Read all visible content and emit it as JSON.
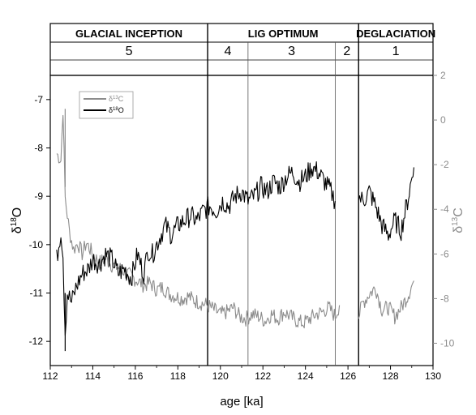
{
  "chart_data": {
    "type": "line",
    "xlabel": "age [ka]",
    "ylabel_left_main": "δ",
    "ylabel_left_sup": "18",
    "ylabel_left_tail": "O",
    "ylabel_right_main": "δ",
    "ylabel_right_sup": "13",
    "ylabel_right_tail": "C",
    "xlim": [
      112,
      130
    ],
    "ylim_left": [
      -12.5,
      -6.5
    ],
    "ylim_right": [
      -11,
      2
    ],
    "x_ticks": [
      "112",
      "114",
      "116",
      "118",
      "120",
      "122",
      "124",
      "126",
      "128",
      "130"
    ],
    "y_left_ticks": [
      "-7",
      "-8",
      "-9",
      "-10",
      "-11",
      "-12"
    ],
    "y_right_ticks": [
      "2",
      "0",
      "-2",
      "-4",
      "-6",
      "-8",
      "-10"
    ],
    "legend": {
      "placement": "top-left",
      "items": [
        {
          "sym": "δ",
          "sup": "13",
          "tail": "C",
          "color": "#8c8c8c"
        },
        {
          "sym": "δ",
          "sup": "18",
          "tail": "O",
          "color": "#000000"
        }
      ]
    },
    "periods": [
      {
        "label": "GLACIAL INCEPTION",
        "start": 112,
        "end": 119.4
      },
      {
        "label": "LIG OPTIMUM",
        "start": 119.4,
        "end": 126.5
      },
      {
        "label": "DEGLACIATION",
        "start": 126.5,
        "end": 130
      }
    ],
    "stages": [
      {
        "label": "5",
        "start": 112,
        "end": 119.4
      },
      {
        "label": "4",
        "start": 119.4,
        "end": 121.3
      },
      {
        "label": "3",
        "start": 121.3,
        "end": 125.4
      },
      {
        "label": "2",
        "start": 125.4,
        "end": 126.5
      },
      {
        "label": "1",
        "start": 126.5,
        "end": 130
      }
    ],
    "boundaries": [
      {
        "x": 119.4,
        "style": "major"
      },
      {
        "x": 121.3,
        "style": "minor"
      },
      {
        "x": 125.4,
        "style": "minor"
      },
      {
        "x": 126.5,
        "style": "major"
      }
    ],
    "series": [
      {
        "axis": "right",
        "color": "#8c8c8c",
        "segments": [
          {
            "x": [
              112.3,
              112.5,
              112.6,
              112.7,
              112.9,
              113.1,
              113.3,
              113.5,
              113.7,
              114.0,
              114.3,
              114.6,
              114.9,
              115.2,
              115.5,
              115.8,
              116.1,
              116.4,
              116.7,
              117.0,
              117.3,
              117.6,
              117.9,
              118.2,
              118.5,
              118.8,
              119.1,
              119.4,
              119.7,
              120.0,
              120.3,
              120.6,
              120.9,
              121.2,
              121.5,
              121.8,
              122.1,
              122.4,
              122.7,
              123.0,
              123.3,
              123.6,
              123.9,
              124.2,
              124.5,
              124.8,
              125.1,
              125.4,
              125.6
            ],
            "y": [
              -1.5,
              -1.8,
              0.5,
              -3.5,
              -5.0,
              -5.8,
              -5.5,
              -6.0,
              -5.5,
              -6.0,
              -6.4,
              -6.2,
              -6.5,
              -6.6,
              -6.8,
              -7.0,
              -7.2,
              -7.4,
              -7.3,
              -7.6,
              -7.5,
              -7.8,
              -7.9,
              -8.0,
              -7.9,
              -8.1,
              -8.2,
              -8.3,
              -8.5,
              -8.7,
              -8.6,
              -8.4,
              -8.8,
              -8.9,
              -8.7,
              -8.8,
              -9.0,
              -8.7,
              -8.9,
              -8.6,
              -8.8,
              -9.0,
              -9.1,
              -8.9,
              -8.7,
              -8.6,
              -8.4,
              -8.8,
              -8.3
            ]
          },
          {
            "x": [
              126.5,
              126.7,
              127.0,
              127.3,
              127.6,
              127.9,
              128.2,
              128.5,
              128.8,
              129.1
            ],
            "y": [
              -8.8,
              -8.2,
              -7.8,
              -7.5,
              -8.5,
              -8.4,
              -8.8,
              -8.4,
              -7.9,
              -7.2
            ]
          }
        ]
      },
      {
        "axis": "left",
        "color": "#000000",
        "segments": [
          {
            "x": [
              112.3,
              112.5,
              112.6,
              112.7,
              112.8,
              113.0,
              113.2,
              113.5,
              113.8,
              114.0,
              114.3,
              114.6,
              114.9,
              115.2,
              115.5,
              115.8,
              116.1,
              116.4,
              116.6,
              116.8,
              117.1,
              117.4,
              117.7,
              118.0,
              118.3,
              118.6,
              118.9,
              119.2,
              119.5,
              119.8,
              120.1,
              120.4,
              120.7,
              121.0,
              121.3,
              121.6,
              121.9,
              122.2,
              122.5,
              122.8,
              123.1,
              123.4,
              123.7,
              124.0,
              124.3,
              124.6,
              124.9,
              125.2,
              125.4
            ],
            "y": [
              -10.3,
              -9.7,
              -10.2,
              -11.8,
              -11.0,
              -11.2,
              -10.9,
              -10.6,
              -10.5,
              -10.3,
              -10.4,
              -10.2,
              -10.3,
              -10.6,
              -10.5,
              -10.7,
              -10.2,
              -10.6,
              -10.1,
              -10.2,
              -9.9,
              -9.6,
              -9.8,
              -9.6,
              -9.5,
              -9.4,
              -9.5,
              -9.3,
              -9.2,
              -9.3,
              -9.1,
              -9.2,
              -9.0,
              -8.9,
              -9.1,
              -9.0,
              -8.8,
              -8.9,
              -8.7,
              -8.8,
              -8.6,
              -8.5,
              -8.7,
              -8.6,
              -8.4,
              -8.5,
              -8.7,
              -8.9,
              -9.1
            ]
          },
          {
            "x": [
              126.5,
              126.7,
              127.0,
              127.3,
              127.6,
              127.9,
              128.2,
              128.5,
              128.8,
              129.1
            ],
            "y": [
              -9.0,
              -9.1,
              -8.9,
              -9.2,
              -9.6,
              -9.8,
              -9.5,
              -9.7,
              -9.1,
              -8.4
            ]
          }
        ]
      }
    ],
    "annotations": [
      {
        "axis": "right",
        "color": "#8c8c8c",
        "x": [
          112.7
        ],
        "y": [
          0.5
        ]
      },
      {
        "axis": "left",
        "color": "#000000",
        "x": [
          112.7
        ],
        "y": [
          -12.2
        ]
      }
    ]
  }
}
